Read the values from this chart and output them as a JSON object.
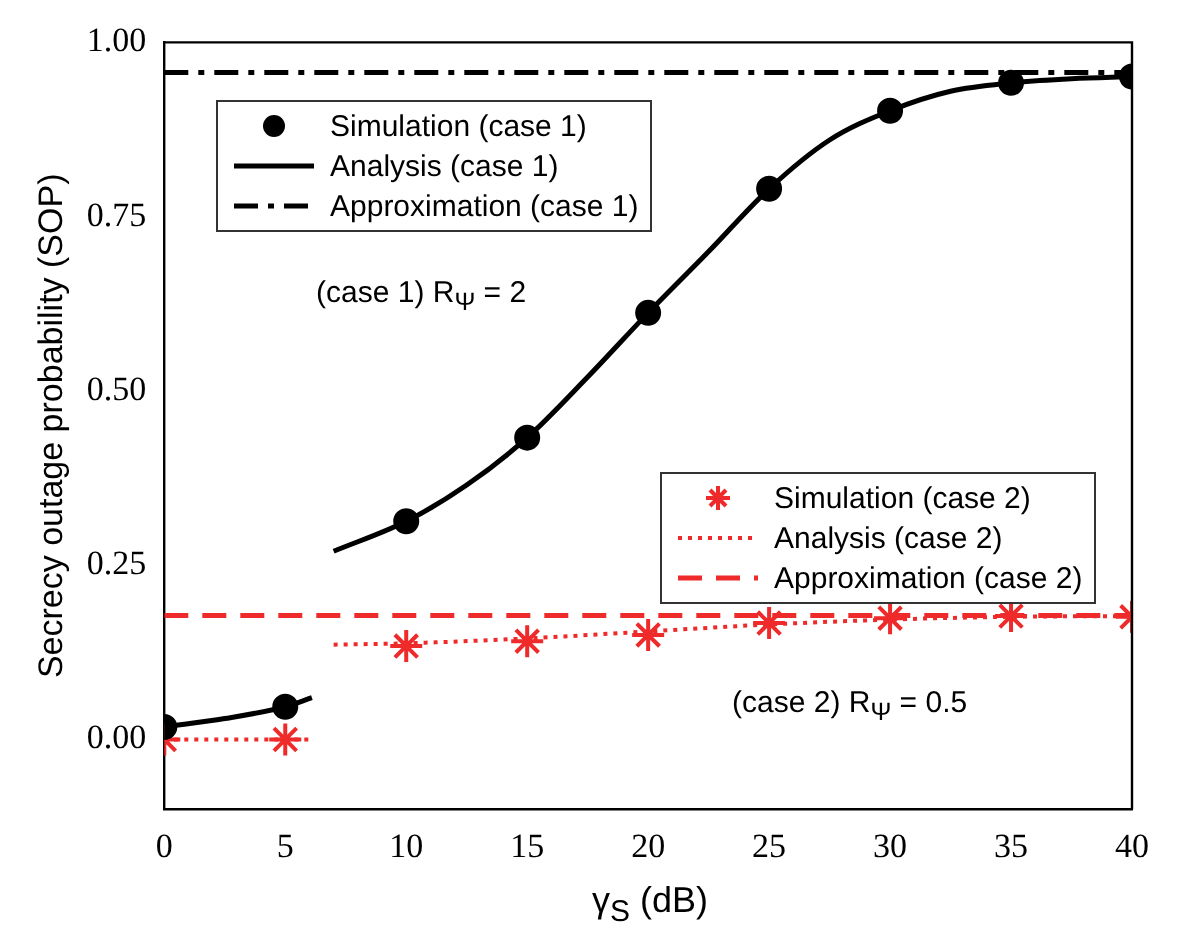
{
  "chart_data": {
    "type": "line",
    "xlabel": "γ$_{S}$ (dB)",
    "ylabel": "Secrecy outage probability (SOP)",
    "xlim": [
      0,
      40
    ],
    "xticks": [
      0,
      5,
      10,
      15,
      20,
      25,
      30,
      35,
      40
    ],
    "ylim": [
      -0.1,
      1.0
    ],
    "yticks": [
      {
        "value": 0,
        "label": "0.00"
      },
      0.25,
      {
        "value": 0.5,
        "label": "0.50"
      },
      0.75,
      {
        "value": 1,
        "label": "1.00"
      }
    ],
    "grid": false,
    "legend": "top left",
    "annotations": [
      "(case 1) R$_{Ψ}$ = 2",
      "(case 2) R$_{Ψ}$ = 0.5"
    ],
    "series": [
      {
        "name": "Simulation (case 1)",
        "type": "scatter",
        "color": "#000000",
        "marker": "circle",
        "x": [
          0,
          5,
          10,
          15,
          20,
          25,
          30,
          35,
          40
        ],
        "values": [
          0.018,
          0.047,
          0.313,
          0.433,
          0.612,
          0.79,
          0.902,
          0.942,
          0.951
        ]
      },
      {
        "name": "Analysis (case 1)",
        "color": "#000000",
        "line_style": "solid",
        "marker": "none",
        "x": [
          0,
          2.5,
          5,
          6.1,
          6.5,
          7,
          10,
          12.5,
          15,
          17.5,
          20,
          22.5,
          25,
          27.5,
          30,
          32.5,
          35,
          37.5,
          40
        ],
        "values": [
          0.018,
          0.03,
          0.047,
          0.06,
          null,
          0.27,
          0.313,
          0.365,
          0.433,
          0.52,
          0.612,
          0.7,
          0.79,
          0.86,
          0.902,
          0.93,
          0.942,
          0.948,
          0.951
        ]
      },
      {
        "name": "Approximation (case 1)",
        "color": "#000000",
        "line_style": "dashdot",
        "marker": "none",
        "x": [
          0,
          40
        ],
        "values": [
          0.957,
          0.957
        ]
      },
      {
        "name": "Simulation (case 2)",
        "type": "scatter",
        "color": "#ee2a2a",
        "marker": "cross",
        "x": [
          0,
          5,
          10,
          15,
          20,
          25,
          30,
          35,
          40
        ],
        "values": [
          0.0,
          0.0,
          0.134,
          0.141,
          0.15,
          0.167,
          0.174,
          0.177,
          0.176
        ]
      },
      {
        "name": "Analysis (case 2)",
        "color": "#ee2a2a",
        "line_style": "dotted",
        "marker": "none",
        "x": [
          0,
          5,
          6.1,
          6.5,
          7,
          10,
          15,
          20,
          25,
          30,
          35,
          40
        ],
        "values": [
          0.0,
          0.0,
          0.0,
          null,
          0.136,
          0.138,
          0.145,
          0.155,
          0.165,
          0.172,
          0.176,
          0.177
        ]
      },
      {
        "name": "Approximation (case 2)",
        "color": "#ee2a2a",
        "line_style": "dashed",
        "marker": "none",
        "x": [
          0,
          40
        ],
        "values": [
          0.178,
          0.178
        ]
      }
    ]
  }
}
